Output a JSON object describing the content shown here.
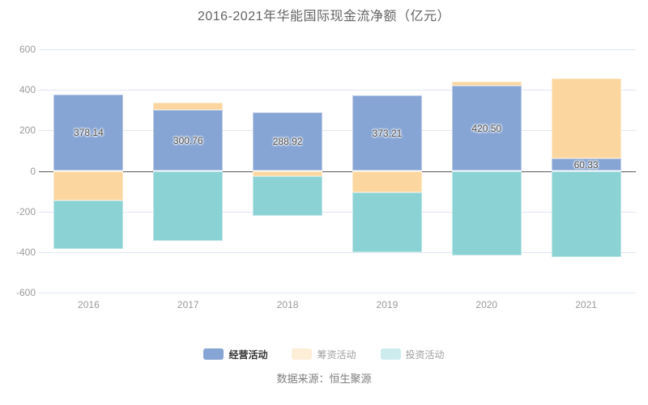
{
  "page": {
    "title": "2016-2021年华能国际现金流净额（亿元）",
    "source_note": "数据来源：恒生聚源"
  },
  "chart_data": {
    "type": "bar",
    "stacked": true,
    "title": "2016-2021年华能国际现金流净额（亿元）",
    "categories": [
      "2016",
      "2017",
      "2018",
      "2019",
      "2020",
      "2021"
    ],
    "series": [
      {
        "name": "经营活动",
        "color": "#87a5d4",
        "values": [
          378.14,
          300.76,
          288.92,
          373.21,
          420.5,
          60.33
        ],
        "labels_shown": true
      },
      {
        "name": "筹资活动",
        "color": "#fbd79f",
        "values": [
          -146,
          36,
          -25,
          -107,
          20,
          397
        ],
        "labels_shown": false
      },
      {
        "name": "投资活动",
        "color": "#8bd2d4",
        "values": [
          -240,
          -346,
          -198,
          -293,
          -415,
          -424
        ],
        "labels_shown": false
      }
    ],
    "ylim": [
      -600,
      600
    ],
    "yticks": [
      600,
      400,
      200,
      0,
      -200,
      -400,
      -600
    ],
    "grid": true,
    "legend_position": "bottom",
    "legend": [
      {
        "label": "经营活动",
        "emphasized": true
      },
      {
        "label": "筹资活动",
        "emphasized": false
      },
      {
        "label": "投资活动",
        "emphasized": false
      }
    ]
  }
}
